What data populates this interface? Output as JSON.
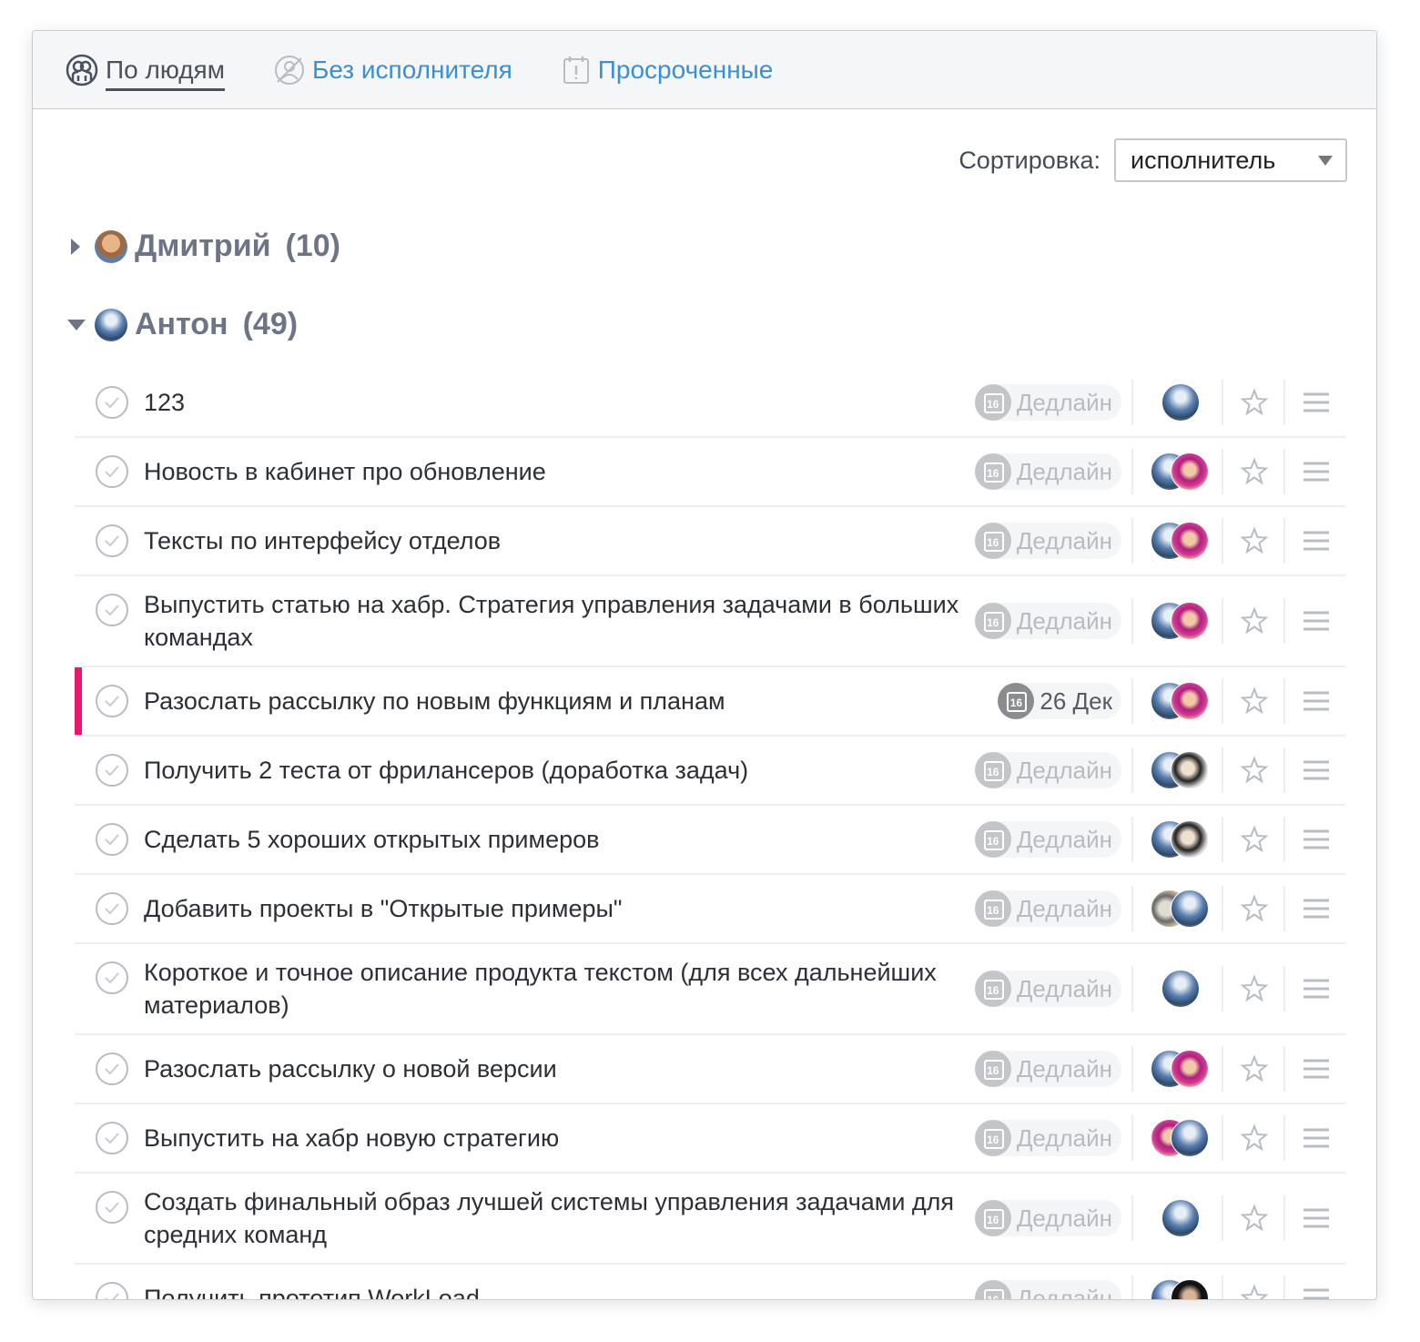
{
  "tabs": [
    "По людям",
    "Без исполнителя",
    "Просроченные"
  ],
  "sort": {
    "label": "Сортировка:",
    "value": "исполнитель"
  },
  "groups": [
    {
      "name": "Дмитрий",
      "count": "(10)"
    },
    {
      "name": "Антон",
      "count": "(49)"
    }
  ],
  "calendar_day": "16",
  "tasks": [
    {
      "title": "123",
      "deadline": "Дедлайн"
    },
    {
      "title": "Новость в кабинет про обновление",
      "deadline": "Дедлайн"
    },
    {
      "title": "Тексты по интерфейсу отделов",
      "deadline": "Дедлайн"
    },
    {
      "title": "Выпустить статью на хабр. Стратегия управления задачами в больших командах",
      "deadline": "Дедлайн"
    },
    {
      "title": "Разослать рассылку по новым функциям и планам",
      "deadline": "26 Дек"
    },
    {
      "title": "Получить 2 теста от фрилансеров (доработка задач)",
      "deadline": "Дедлайн"
    },
    {
      "title": "Сделать 5 хороших открытых примеров",
      "deadline": "Дедлайн"
    },
    {
      "title": "Добавить проекты в \"Открытые примеры\"",
      "deadline": "Дедлайн"
    },
    {
      "title": "Короткое и точное описание продукта текстом (для всех дальнейших материалов)",
      "deadline": "Дедлайн"
    },
    {
      "title": "Разослать рассылку о новой версии",
      "deadline": "Дедлайн"
    },
    {
      "title": "Выпустить на хабр новую стратегию",
      "deadline": "Дедлайн"
    },
    {
      "title": "Создать финальный образ лучшей системы управления задачами для средних команд",
      "deadline": "Дедлайн"
    },
    {
      "title": "Получить прототип WorkLoad",
      "deadline": "Дедлайн"
    }
  ]
}
